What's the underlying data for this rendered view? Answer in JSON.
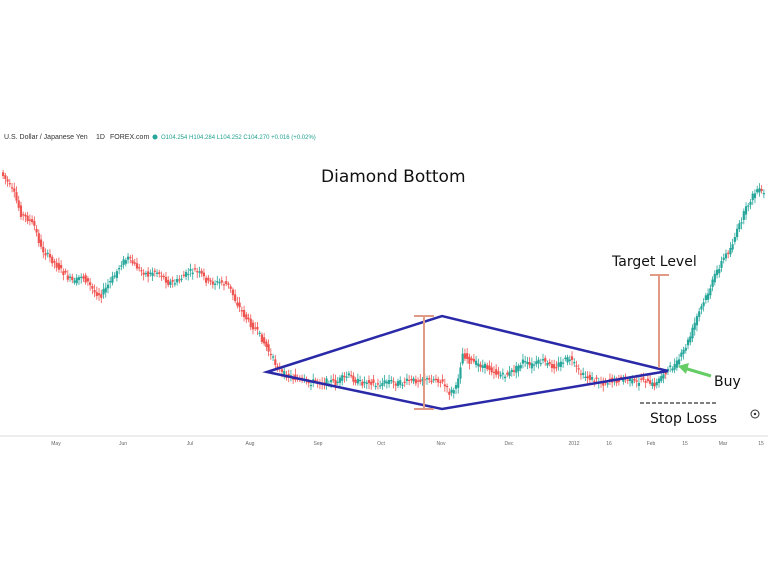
{
  "header": {
    "symbol": "U.S. Dollar / Japanese Yen",
    "interval": "1D",
    "source": "FOREX.com",
    "ohlc": "O104.254  H104.284  L104.252  C104.270  +0.016 (+0.02%)"
  },
  "colors": {
    "up_candle": "#26a69a",
    "down_candle": "#ef5350",
    "diamond": "#2a2aa8",
    "measure": "#e09a85",
    "buy_arrow": "#66cc66",
    "stop_loss": "#555555"
  },
  "chart_data": {
    "type": "line",
    "title": "Diamond Bottom",
    "xlabel": "",
    "ylabel": "",
    "grid": false,
    "x_ticks": [
      "May",
      "Jun",
      "Jul",
      "Aug",
      "Sep",
      "Oct",
      "Nov",
      "Dec",
      "2012",
      "16",
      "Feb",
      "15",
      "Mar",
      "15"
    ],
    "series": [
      {
        "values": [
          0.97,
          0.93,
          0.88,
          0.8,
          0.78,
          0.75,
          0.66,
          0.63,
          0.6,
          0.57,
          0.54,
          0.52,
          0.55,
          0.52,
          0.48,
          0.47,
          0.51,
          0.55,
          0.6,
          0.62,
          0.59,
          0.57,
          0.55,
          0.57,
          0.55,
          0.52,
          0.52,
          0.54,
          0.56,
          0.57,
          0.55,
          0.52,
          0.52,
          0.52,
          0.51,
          0.45,
          0.4,
          0.36,
          0.33,
          0.29,
          0.24,
          0.19,
          0.15,
          0.14,
          0.13,
          0.12,
          0.11,
          0.12,
          0.11,
          0.12,
          0.11,
          0.13,
          0.14,
          0.12,
          0.11,
          0.12,
          0.1,
          0.11,
          0.12,
          0.11,
          0.11,
          0.12,
          0.12,
          0.13,
          0.12,
          0.13,
          0.11,
          0.07,
          0.09,
          0.23,
          0.2,
          0.19,
          0.18,
          0.17,
          0.15,
          0.14,
          0.15,
          0.17,
          0.2,
          0.18,
          0.19,
          0.2,
          0.18,
          0.18,
          0.2,
          0.21,
          0.17,
          0.14,
          0.13,
          0.12,
          0.11,
          0.12,
          0.12,
          0.13,
          0.12,
          0.11,
          0.13,
          0.1,
          0.11,
          0.15,
          0.17,
          0.19,
          0.24,
          0.3,
          0.38,
          0.44,
          0.5,
          0.57,
          0.62,
          0.66,
          0.73,
          0.8,
          0.86,
          0.9,
          0.88
        ]
      }
    ],
    "annotations": {
      "target": "Target Level",
      "buy": "Buy",
      "stop": "Stop Loss"
    }
  }
}
